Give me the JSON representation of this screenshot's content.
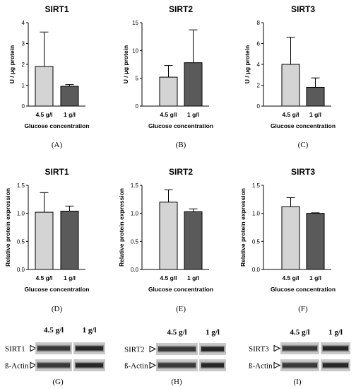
{
  "colors": {
    "bar_light": "#d4d4d4",
    "bar_dark": "#5a5a5a",
    "axis": "#000000",
    "blot_band": "#1c1c1c",
    "blot_bg": "#c8c8c8"
  },
  "chart_data": [
    {
      "id": "A",
      "type": "bar",
      "title": "SIRT1",
      "panel_label": "(A)",
      "ylabel": "U / µg protein",
      "xlabel": "Glucose concentration",
      "categories": [
        "4.5 g/l",
        "1 g/l"
      ],
      "values": [
        1.9,
        0.95
      ],
      "errors": [
        1.65,
        0.08
      ],
      "ylim": [
        0,
        4
      ],
      "yticks": [
        "0",
        "1",
        "2",
        "3",
        "4"
      ],
      "bar_colors": [
        "light",
        "dark"
      ]
    },
    {
      "id": "B",
      "type": "bar",
      "title": "SIRT2",
      "panel_label": "(B)",
      "ylabel": "U / µg protein",
      "xlabel": "Glucose concentration",
      "categories": [
        "4.5 g/l",
        "1 g/l"
      ],
      "values": [
        5.2,
        7.8
      ],
      "errors": [
        2.1,
        5.9
      ],
      "ylim": [
        0,
        15
      ],
      "yticks": [
        "0",
        "5",
        "10",
        "15"
      ],
      "bar_colors": [
        "light",
        "dark"
      ]
    },
    {
      "id": "C",
      "type": "bar",
      "title": "SIRT3",
      "panel_label": "(C)",
      "ylabel": "U / µg protein",
      "xlabel": "Glucose concentration",
      "categories": [
        "4.5 g/l",
        "1 g/l"
      ],
      "values": [
        4.0,
        1.8
      ],
      "errors": [
        2.6,
        0.9
      ],
      "ylim": [
        0,
        8
      ],
      "yticks": [
        "0",
        "2",
        "4",
        "6",
        "8"
      ],
      "bar_colors": [
        "light",
        "dark"
      ]
    },
    {
      "id": "D",
      "type": "bar",
      "title": "SIRT1",
      "panel_label": "(D)",
      "ylabel": "Relative protein expression",
      "xlabel": "Glucose concentration",
      "categories": [
        "4.5 g/l",
        "1 g/l"
      ],
      "values": [
        1.02,
        1.04
      ],
      "errors": [
        0.35,
        0.09
      ],
      "ylim": [
        0,
        1.5
      ],
      "yticks": [
        "0.0",
        "0.5",
        "1.0",
        "1.5"
      ],
      "bar_colors": [
        "light",
        "dark"
      ]
    },
    {
      "id": "E",
      "type": "bar",
      "title": "SIRT2",
      "panel_label": "(E)",
      "ylabel": "Relative protein expression",
      "xlabel": "Glucose concentration",
      "categories": [
        "4.5 g/l",
        "1 g/l"
      ],
      "values": [
        1.2,
        1.03
      ],
      "errors": [
        0.22,
        0.05
      ],
      "ylim": [
        0,
        1.5
      ],
      "yticks": [
        "0.0",
        "0.5",
        "1.0",
        "1.5"
      ],
      "bar_colors": [
        "light",
        "dark"
      ]
    },
    {
      "id": "F",
      "type": "bar",
      "title": "SIRT3",
      "panel_label": "(F)",
      "ylabel": "Relative protein expression",
      "xlabel": "Glucose concentration",
      "categories": [
        "4.5 g/l",
        "1 g/l"
      ],
      "values": [
        1.12,
        1.0
      ],
      "errors": [
        0.16,
        0.01
      ],
      "ylim": [
        0,
        1.5
      ],
      "yticks": [
        "0.0",
        "0.5",
        "1.0",
        "1.5"
      ],
      "bar_colors": [
        "light",
        "dark"
      ]
    }
  ],
  "blots": [
    {
      "id": "G",
      "panel_label": "(G)",
      "columns": [
        "4.5 g/l",
        "1 g/l"
      ],
      "rows": [
        {
          "label": "SIRT1"
        },
        {
          "label": "ß-Actin"
        }
      ]
    },
    {
      "id": "H",
      "panel_label": "(H)",
      "columns": [
        "4.5 g/l",
        "1 g/l"
      ],
      "rows": [
        {
          "label": "SIRT2"
        },
        {
          "label": "ß-Actin"
        }
      ]
    },
    {
      "id": "I",
      "panel_label": "(I)",
      "columns": [
        "4.5 g/l",
        "1 g/l"
      ],
      "rows": [
        {
          "label": "SIRT3"
        },
        {
          "label": "ß-Actin"
        }
      ]
    }
  ]
}
